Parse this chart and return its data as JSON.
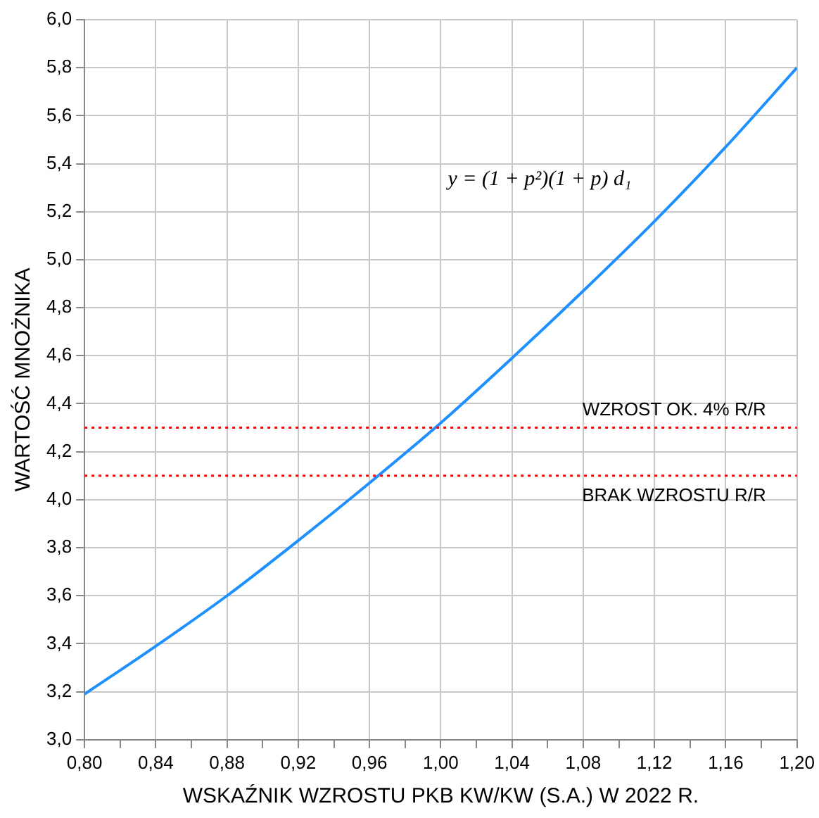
{
  "chart_data": {
    "type": "line",
    "xlabel": "WSKAŹNIK WZROSTU PKB KW/KW (S.A.) W 2022 R.",
    "ylabel": "WARTOŚĆ MNOŻNIKA",
    "x": [
      0.8,
      0.84,
      0.88,
      0.92,
      0.96,
      1.0,
      1.04,
      1.08,
      1.12,
      1.16,
      1.2
    ],
    "series": [
      {
        "color": "#1e90ff",
        "values": [
          3.19,
          3.39,
          3.6,
          3.83,
          4.07,
          4.32,
          4.59,
          4.87,
          5.16,
          5.47,
          5.8
        ]
      }
    ],
    "xlim": [
      0.8,
      1.2
    ],
    "xticks": [
      {
        "value": 0.8,
        "label": "0,80"
      },
      {
        "value": 0.82,
        "label": null
      },
      {
        "value": 0.84,
        "label": "0,84"
      },
      {
        "value": 0.86,
        "label": null
      },
      {
        "value": 0.88,
        "label": "0,88"
      },
      {
        "value": 0.9,
        "label": null
      },
      {
        "value": 0.92,
        "label": "0,92"
      },
      {
        "value": 0.94,
        "label": null
      },
      {
        "value": 0.96,
        "label": "0,96"
      },
      {
        "value": 0.98,
        "label": null
      },
      {
        "value": 1.0,
        "label": "1,00"
      },
      {
        "value": 1.02,
        "label": null
      },
      {
        "value": 1.04,
        "label": "1,04"
      },
      {
        "value": 1.06,
        "label": null
      },
      {
        "value": 1.08,
        "label": "1,08"
      },
      {
        "value": 1.1,
        "label": null
      },
      {
        "value": 1.12,
        "label": "1,12"
      },
      {
        "value": 1.14,
        "label": null
      },
      {
        "value": 1.16,
        "label": "1,16"
      },
      {
        "value": 1.18,
        "label": null
      },
      {
        "value": 1.2,
        "label": "1,20"
      }
    ],
    "ylim": [
      3.0,
      6.0
    ],
    "yticks": [
      {
        "value": 3.0,
        "label": "3,0"
      },
      {
        "value": 3.2,
        "label": "3,2"
      },
      {
        "value": 3.4,
        "label": "3,4"
      },
      {
        "value": 3.6,
        "label": "3,6"
      },
      {
        "value": 3.8,
        "label": "3,8"
      },
      {
        "value": 4.0,
        "label": "4,0"
      },
      {
        "value": 4.2,
        "label": "4,2"
      },
      {
        "value": 4.4,
        "label": "4,4"
      },
      {
        "value": 4.6,
        "label": "4,6"
      },
      {
        "value": 4.8,
        "label": "4,8"
      },
      {
        "value": 5.0,
        "label": "5,0"
      },
      {
        "value": 5.2,
        "label": "5,2"
      },
      {
        "value": 5.4,
        "label": "5,4"
      },
      {
        "value": 5.6,
        "label": "5,6"
      },
      {
        "value": 5.8,
        "label": "5,8"
      },
      {
        "value": 6.0,
        "label": "6,0"
      }
    ],
    "ref_lines": [
      {
        "axis": "y",
        "value": 4.3,
        "label": "WZROST OK. 4% R/R",
        "color": "#ff0000",
        "line_style": "dotted"
      },
      {
        "axis": "y",
        "value": 4.1,
        "label": "BRAK WZROSTU R/R",
        "color": "#ff0000",
        "line_style": "dotted"
      }
    ],
    "annotations": [
      "y = (1 + p²)(1 + p) d₁"
    ],
    "grid": true,
    "legend": false,
    "marker": "none",
    "line_style": "solid"
  }
}
